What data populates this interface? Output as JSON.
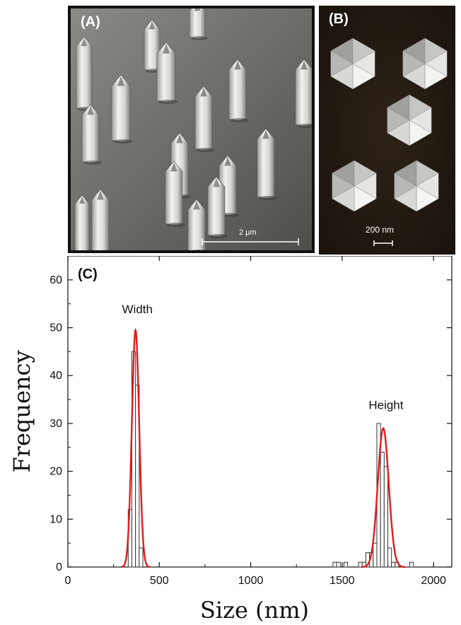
{
  "panels": {
    "a": {
      "label": "(A)",
      "scale_bar": "2 µm"
    },
    "b": {
      "label": "(B)",
      "scale_bar": "200 nm"
    },
    "c": {
      "label": "(C)"
    }
  },
  "colors": {
    "fit_curve": "#e41a1c",
    "bar_fill": "#ffffff",
    "bar_stroke": "#333333"
  },
  "chart_data": {
    "type": "bar",
    "label": "(C)",
    "xlabel": "Size (nm)",
    "ylabel": "Frequency",
    "xlim": [
      0,
      2100
    ],
    "ylim": [
      0,
      65
    ],
    "xticks": [
      0,
      500,
      1000,
      1500,
      2000
    ],
    "yticks": [
      0,
      10,
      20,
      30,
      40,
      50,
      60
    ],
    "annotations": [
      {
        "text": "Width",
        "x": 380,
        "y": 53
      },
      {
        "text": "Height",
        "x": 1740,
        "y": 33
      }
    ],
    "bin_width": 20,
    "histogram": {
      "bin_centers": [
        340,
        360,
        380,
        400,
        1460,
        1480,
        1500,
        1520,
        1540,
        1560,
        1580,
        1600,
        1620,
        1640,
        1660,
        1680,
        1700,
        1720,
        1740,
        1760,
        1780,
        1800,
        1820,
        1840,
        1860,
        1880
      ],
      "counts": [
        12,
        45,
        38,
        4,
        1,
        1,
        0,
        1,
        0,
        0,
        0,
        1,
        1,
        3,
        3,
        5,
        30,
        24,
        21,
        4,
        1,
        1,
        0,
        0,
        0,
        1
      ]
    },
    "fits": [
      {
        "name": "Width",
        "mean": 370,
        "sigma": 20,
        "amplitude": 49.5
      },
      {
        "name": "Height",
        "mean": 1725,
        "sigma": 30,
        "amplitude": 29
      }
    ]
  }
}
